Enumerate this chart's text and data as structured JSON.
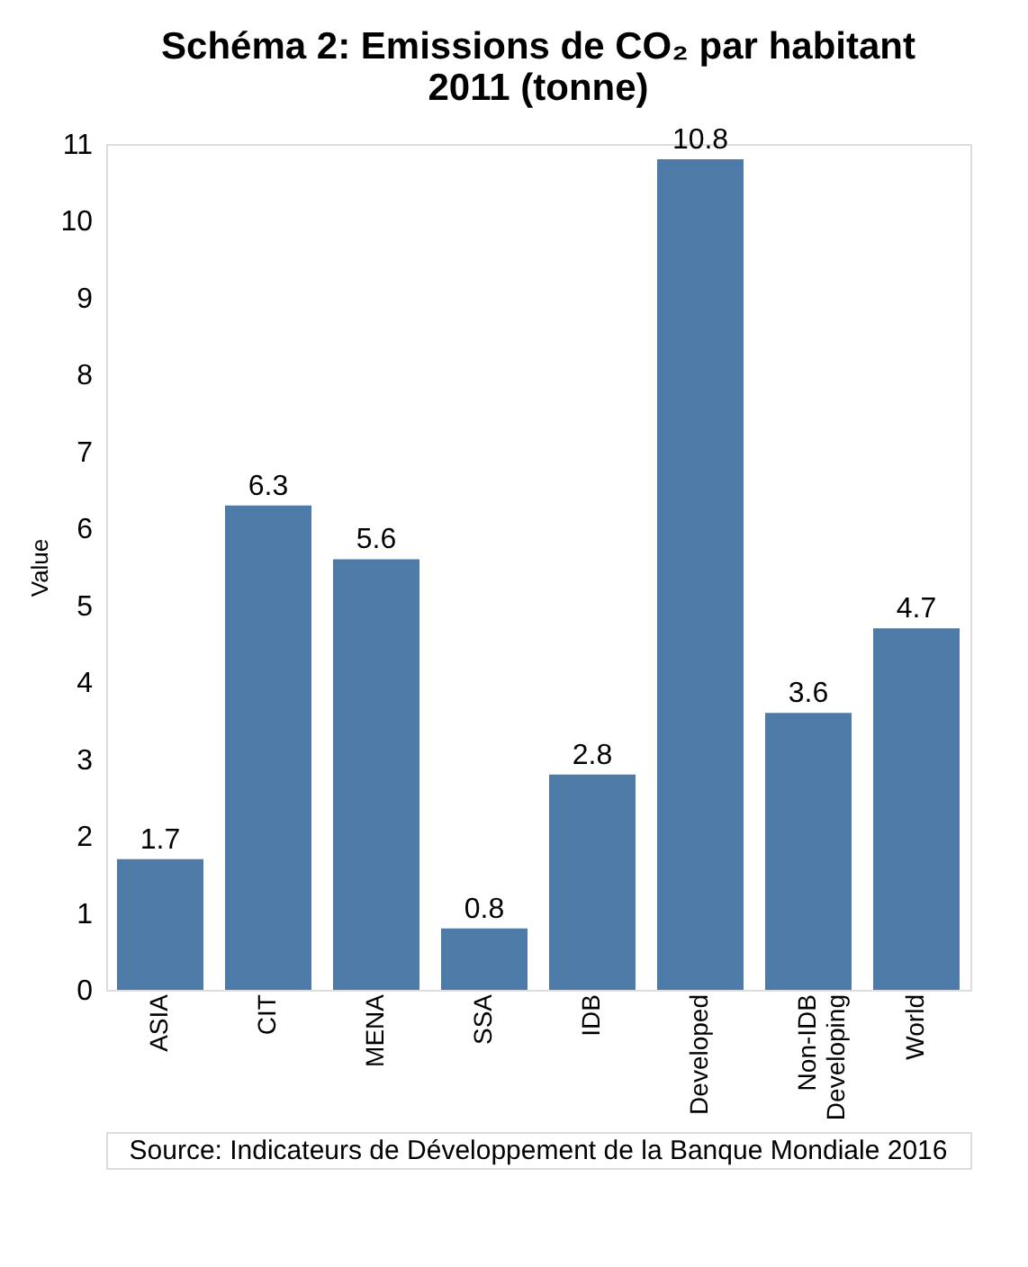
{
  "chart_data": {
    "type": "bar",
    "title": "Schéma 2: Emissions de CO₂ par habitant 2011 (tonne)",
    "ylabel": "Value",
    "categories": [
      "ASIA",
      "CIT",
      "MENA",
      "SSA",
      "IDB",
      "Developed",
      "Non-IDB Developing",
      "World"
    ],
    "values": [
      1.7,
      6.3,
      5.6,
      0.8,
      2.8,
      10.8,
      3.6,
      4.7
    ],
    "color": "#4e7aa8",
    "ylim": [
      0,
      11
    ],
    "yticks": [
      0,
      1,
      2,
      3,
      4,
      5,
      6,
      7,
      8,
      9,
      10,
      11
    ],
    "grid": false,
    "data_labels": true,
    "annotations": [
      "Source: Indicateurs de Développement de la Banque Mondiale 2016"
    ]
  }
}
